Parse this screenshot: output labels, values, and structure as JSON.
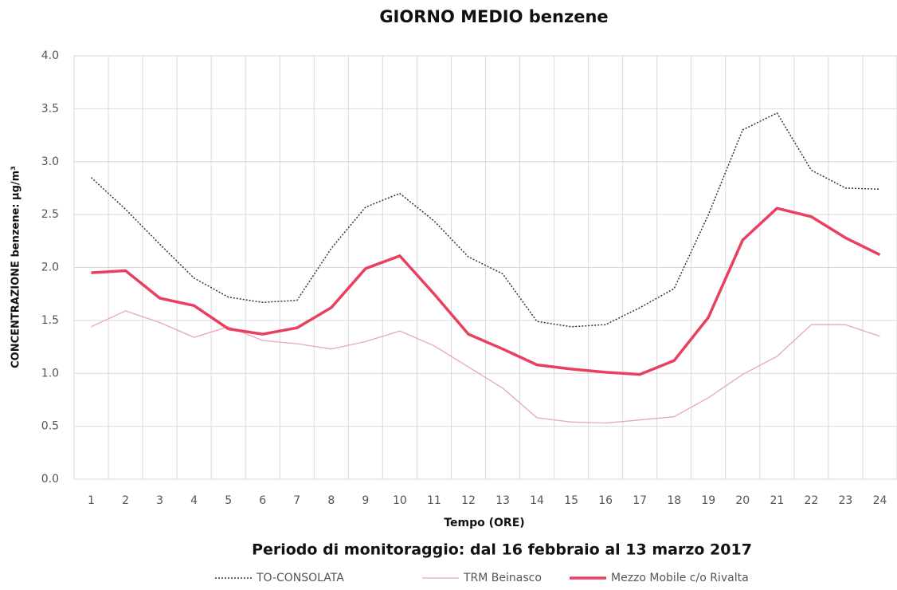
{
  "chart_data": {
    "type": "line",
    "title": "GIORNO MEDIO benzene",
    "subtitle": "Periodo di monitoraggio: dal 16 febbraio al 13 marzo 2017",
    "x_label": "Tempo (ORE)",
    "y_label": "CONCENTRAZIONE benzene:  µg/m³",
    "categories": [
      1,
      2,
      3,
      4,
      5,
      6,
      7,
      8,
      9,
      10,
      11,
      12,
      13,
      14,
      15,
      16,
      17,
      18,
      19,
      20,
      21,
      22,
      23,
      24
    ],
    "series": [
      {
        "name": "TO-CONSOLATA",
        "color": "#333333",
        "line_style": "dotted",
        "values": [
          2.85,
          2.55,
          2.22,
          1.9,
          1.72,
          1.67,
          1.69,
          2.18,
          2.57,
          2.7,
          2.44,
          2.1,
          1.94,
          1.49,
          1.44,
          1.46,
          1.62,
          1.8,
          2.5,
          3.3,
          3.46,
          2.92,
          2.75,
          2.74
        ]
      },
      {
        "name": "TRM Beinasco",
        "color": "#e8a8b4",
        "line_style": "thin",
        "values": [
          1.44,
          1.59,
          1.48,
          1.34,
          1.44,
          1.31,
          1.28,
          1.23,
          1.3,
          1.4,
          1.26,
          1.06,
          0.86,
          0.58,
          0.54,
          0.53,
          0.56,
          0.59,
          0.77,
          0.99,
          1.16,
          1.46,
          1.46,
          1.35
        ]
      },
      {
        "name": "Mezzo Mobile c/o Rivalta",
        "color": "#e8405e",
        "line_style": "bold",
        "values": [
          1.95,
          1.97,
          1.71,
          1.64,
          1.42,
          1.37,
          1.43,
          1.62,
          1.99,
          2.11,
          1.75,
          1.37,
          1.23,
          1.08,
          1.04,
          1.01,
          0.99,
          1.12,
          1.53,
          2.26,
          2.56,
          2.48,
          2.28,
          2.12
        ]
      }
    ],
    "ylim": [
      0,
      4
    ],
    "yticks": [
      {
        "value": 0,
        "label": "0.0"
      },
      0.5,
      {
        "value": 1,
        "label": "1.0"
      },
      1.5,
      {
        "value": 2,
        "label": "2.0"
      },
      2.5,
      {
        "value": 3,
        "label": "3.0"
      },
      3.5,
      {
        "value": 4,
        "label": "4.0"
      }
    ],
    "grid": true,
    "legend": "bottom"
  }
}
